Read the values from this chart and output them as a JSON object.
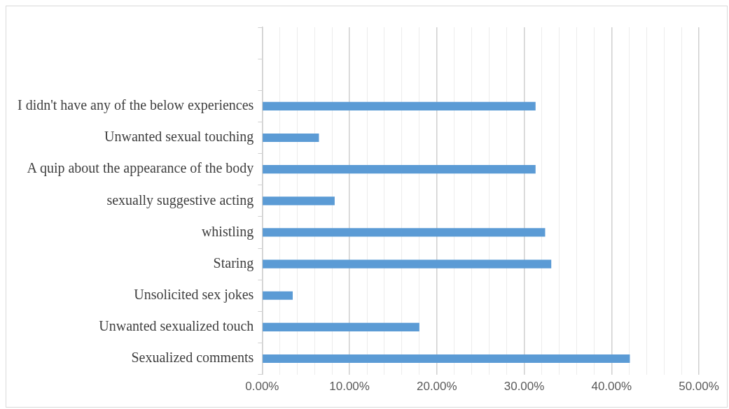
{
  "chart_data": {
    "type": "bar",
    "orientation": "horizontal",
    "categories": [
      null,
      null,
      "I didn't have any of the below experiences",
      "Unwanted sexual touching",
      "A quip about the appearance of the body",
      "sexually suggestive acting",
      "whistling",
      "Staring",
      "Unsolicited sex jokes",
      "Unwanted sexualized touch",
      "Sexualized comments"
    ],
    "values": [
      null,
      null,
      31.3,
      6.5,
      31.3,
      8.3,
      32.4,
      33.1,
      3.5,
      18.0,
      42.1
    ],
    "color": "#5b9bd5",
    "xlim": [
      0,
      50
    ],
    "xticks": [
      {
        "value": 0,
        "label": "0.00%"
      },
      {
        "value": 2,
        "label": null
      },
      {
        "value": 4,
        "label": null
      },
      {
        "value": 6,
        "label": null
      },
      {
        "value": 8,
        "label": null
      },
      {
        "value": 10,
        "label": "10.00%"
      },
      {
        "value": 12,
        "label": null
      },
      {
        "value": 14,
        "label": null
      },
      {
        "value": 16,
        "label": null
      },
      {
        "value": 18,
        "label": null
      },
      {
        "value": 20,
        "label": "20.00%"
      },
      {
        "value": 22,
        "label": null
      },
      {
        "value": 24,
        "label": null
      },
      {
        "value": 26,
        "label": null
      },
      {
        "value": 28,
        "label": null
      },
      {
        "value": 30,
        "label": "30.00%"
      },
      {
        "value": 32,
        "label": null
      },
      {
        "value": 34,
        "label": null
      },
      {
        "value": 36,
        "label": null
      },
      {
        "value": 38,
        "label": null
      },
      {
        "value": 40,
        "label": "40.00%"
      },
      {
        "value": 42,
        "label": null
      },
      {
        "value": 44,
        "label": null
      },
      {
        "value": 46,
        "label": null
      },
      {
        "value": 48,
        "label": null
      },
      {
        "value": 50,
        "label": "50.00%"
      }
    ],
    "grid": "x",
    "legend": false
  }
}
